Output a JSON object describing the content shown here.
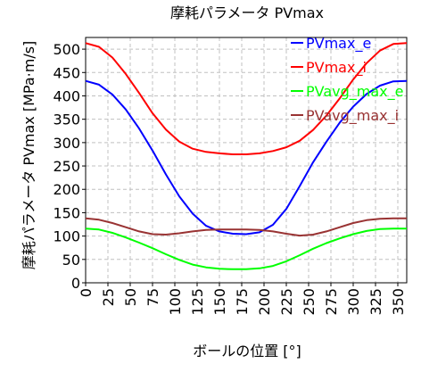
{
  "chart_data": {
    "type": "line",
    "title": "摩耗パラメータ PVmax",
    "xlabel": "ボールの位置 [°]",
    "ylabel": "摩耗パラメータ PVmax [MPa·m/s]",
    "xlim": [
      0,
      360
    ],
    "ylim": [
      0,
      525
    ],
    "x_ticks": [
      0,
      25,
      50,
      75,
      100,
      125,
      150,
      175,
      200,
      225,
      250,
      275,
      300,
      325,
      350
    ],
    "y_ticks": [
      0,
      50,
      100,
      150,
      200,
      250,
      300,
      350,
      400,
      450,
      500
    ],
    "grid": true,
    "legend_position": "top-right",
    "x": [
      0,
      15,
      30,
      45,
      60,
      75,
      90,
      105,
      120,
      135,
      150,
      165,
      180,
      195,
      210,
      225,
      240,
      255,
      270,
      285,
      300,
      315,
      330,
      345,
      360
    ],
    "series": [
      {
        "name": "PVmax_e",
        "color": "#0000ff",
        "values": [
          432,
          424,
          403,
          371,
          330,
          283,
          232,
          185,
          148,
          122,
          110,
          105,
          104,
          108,
          124,
          158,
          207,
          258,
          302,
          343,
          377,
          404,
          422,
          431,
          432
        ]
      },
      {
        "name": "PVmax_i",
        "color": "#ff0000",
        "values": [
          513,
          505,
          482,
          447,
          406,
          363,
          328,
          302,
          287,
          280,
          277,
          275,
          275,
          277,
          282,
          290,
          304,
          327,
          358,
          395,
          435,
          470,
          497,
          511,
          513
        ]
      },
      {
        "name": "PVavg_max_e",
        "color": "#00ff00",
        "values": [
          116,
          114,
          107,
          97,
          86,
          74,
          61,
          49,
          39,
          33,
          30,
          29,
          29,
          31,
          36,
          46,
          59,
          73,
          85,
          95,
          104,
          111,
          115,
          116,
          116
        ]
      },
      {
        "name": "PVavg_max_i",
        "color": "#993333",
        "values": [
          138,
          135,
          128,
          119,
          110,
          104,
          103,
          106,
          110,
          113,
          114,
          114,
          114,
          113,
          110,
          105,
          101,
          103,
          110,
          119,
          128,
          134,
          137,
          138,
          138
        ]
      }
    ]
  }
}
